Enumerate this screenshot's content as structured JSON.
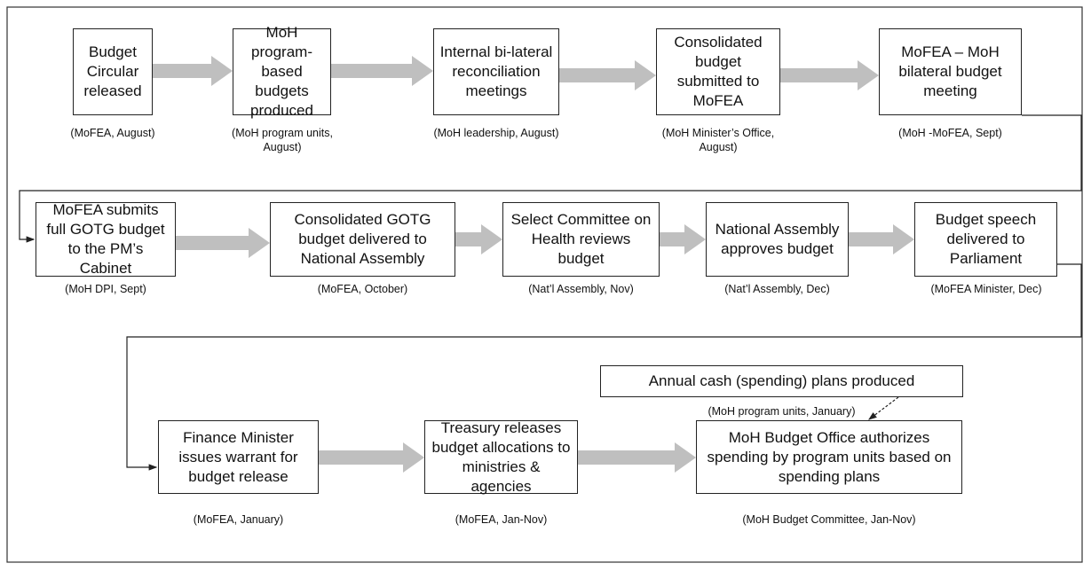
{
  "nodes": [
    {
      "label": "Budget Circular released",
      "note": "(MoFEA, August)"
    },
    {
      "label": "MoH program-based budgets produced",
      "note": "(MoH program units, August)"
    },
    {
      "label": "Internal  bi-lateral reconciliation meetings",
      "note": "(MoH leadership, August)"
    },
    {
      "label": "Consolidated budget submitted to MoFEA",
      "note": "(MoH Minister’s Office, August)"
    },
    {
      "label": "MoFEA – MoH bilateral budget meeting",
      "note": "(MoH -MoFEA, Sept)"
    },
    {
      "label": "MoFEA submits full GOTG budget to the PM’s Cabinet",
      "note": "(MoH DPI, Sept)"
    },
    {
      "label": "Consolidated GOTG budget delivered to National Assembly",
      "note": "(MoFEA, October)"
    },
    {
      "label": "Select Committee on Health reviews budget",
      "note": "(Nat’l Assembly, Nov)"
    },
    {
      "label": "National Assembly approves budget",
      "note": "(Nat’l Assembly, Dec)"
    },
    {
      "label": "Budget speech delivered to Parliament",
      "note": "(MoFEA Minister, Dec)"
    },
    {
      "label": "Finance Minister issues warrant for budget release",
      "note": "(MoFEA, January)"
    },
    {
      "label": "Treasury releases budget allocations to ministries & agencies",
      "note": "(MoFEA, Jan-Nov)"
    },
    {
      "label": "MoH Budget Office authorizes spending by program units based on spending plans",
      "note": "(MoH Budget Committee, Jan-Nov)"
    },
    {
      "label": "Annual cash (spending) plans produced",
      "note": "(MoH program units, January)"
    }
  ]
}
